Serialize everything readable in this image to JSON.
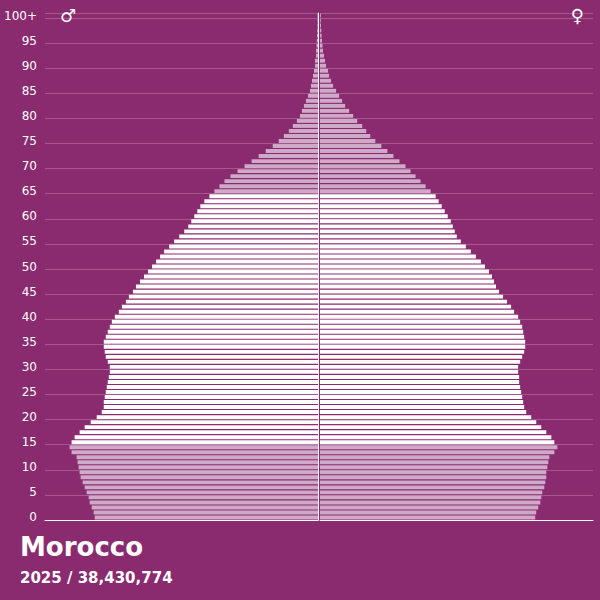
{
  "chart_data": {
    "type": "pyramid",
    "title": "Morocco",
    "subtitle": "2025 / 38,430,774",
    "categories": [
      "0",
      null,
      null,
      null,
      null,
      "5",
      null,
      null,
      null,
      null,
      "10",
      null,
      null,
      null,
      null,
      "15",
      null,
      null,
      null,
      null,
      "20",
      null,
      null,
      null,
      null,
      "25",
      null,
      null,
      null,
      null,
      "30",
      null,
      null,
      null,
      null,
      "35",
      null,
      null,
      null,
      null,
      "40",
      null,
      null,
      null,
      null,
      "45",
      null,
      null,
      null,
      null,
      "50",
      null,
      null,
      null,
      null,
      "55",
      null,
      null,
      null,
      null,
      "60",
      null,
      null,
      null,
      null,
      "65",
      null,
      null,
      null,
      null,
      "70",
      null,
      null,
      null,
      null,
      "75",
      null,
      null,
      null,
      null,
      "80",
      null,
      null,
      null,
      null,
      "85",
      null,
      null,
      null,
      null,
      "90",
      null,
      null,
      null,
      null,
      "95",
      null,
      null,
      null,
      null,
      "100+"
    ],
    "series": [
      {
        "name": "♂",
        "values": [
          310800,
          312200,
          315000,
          317800,
          319200,
          322000,
          324800,
          327600,
          330400,
          331800,
          333200,
          334600,
          336000,
          343000,
          345800,
          343000,
          338800,
          331800,
          324800,
          316400,
          308000,
          301000,
          298200,
          298200,
          296800,
          295400,
          294000,
          292600,
          291200,
          289800,
          289800,
          292600,
          295400,
          296800,
          298200,
          298200,
          295400,
          292600,
          289800,
          287000,
          282800,
          277200,
          273000,
          267400,
          263200,
          257600,
          253400,
          247800,
          242200,
          236600,
          231000,
          225400,
          219800,
          214200,
          207200,
          200200,
          193200,
          186200,
          180600,
          176400,
          172200,
          168000,
          163800,
          158200,
          151200,
          144200,
          137200,
          130200,
          121800,
          112000,
          102200,
          92400,
          82600,
          72800,
          63000,
          54600,
          47600,
          40600,
          35000,
          29400,
          25200,
          22400,
          19600,
          16800,
          14000,
          11200,
          9800,
          8400,
          7000,
          5600,
          4200,
          4200,
          2800,
          2800,
          2100,
          1700,
          1400,
          1100,
          800,
          700,
          700
        ],
        "colors": [
          "#cfa9c8",
          "#cfa9c8",
          "#cfa9c8",
          "#cfa9c8",
          "#cfa9c8",
          "#cfa9c8",
          "#cfa9c8",
          "#cfa9c8",
          "#cfa9c8",
          "#cfa9c8",
          "#cfa9c8",
          "#cfa9c8",
          "#cfa9c8",
          "#cfa9c8",
          "#cfa9c8",
          "#ffffff",
          "#ffffff",
          "#ffffff",
          "#ffffff",
          "#ffffff",
          "#ffffff",
          "#ffffff",
          "#ffffff",
          "#ffffff",
          "#ffffff",
          "#ffffff",
          "#ffffff",
          "#ffffff",
          "#ffffff",
          "#ffffff",
          "#ffffff",
          "#ffffff",
          "#ffffff",
          "#ffffff",
          "#ffffff",
          "#ffffff",
          "#ffffff",
          "#ffffff",
          "#ffffff",
          "#ffffff",
          "#ffffff",
          "#ffffff",
          "#ffffff",
          "#ffffff",
          "#ffffff",
          "#ffffff",
          "#ffffff",
          "#ffffff",
          "#ffffff",
          "#ffffff",
          "#ffffff",
          "#ffffff",
          "#ffffff",
          "#ffffff",
          "#ffffff",
          "#ffffff",
          "#ffffff",
          "#ffffff",
          "#ffffff",
          "#ffffff",
          "#ffffff",
          "#ffffff",
          "#ffffff",
          "#ffffff",
          "#ffffff",
          "#cfa9c8",
          "#cfa9c8",
          "#cfa9c8",
          "#cfa9c8",
          "#cfa9c8",
          "#cfa9c8",
          "#cfa9c8",
          "#cfa9c8",
          "#cfa9c8",
          "#cfa9c8",
          "#cfa9c8",
          "#cfa9c8",
          "#cfa9c8",
          "#cfa9c8",
          "#cfa9c8",
          "#cfa9c8",
          "#cfa9c8",
          "#cfa9c8",
          "#cfa9c8",
          "#cfa9c8",
          "#cfa9c8",
          "#cfa9c8",
          "#cfa9c8",
          "#cfa9c8",
          "#cfa9c8",
          "#cfa9c8",
          "#cfa9c8",
          "#cfa9c8",
          "#cfa9c8",
          "#cfa9c8",
          "#cfa9c8",
          "#cfa9c8",
          "#cfa9c8",
          "#cfa9c8",
          "#cfa9c8",
          "#cfa9c8"
        ]
      },
      {
        "name": "♀",
        "values": [
          299600,
          301000,
          303800,
          306600,
          308000,
          309400,
          312200,
          313600,
          315000,
          315000,
          316400,
          317800,
          319200,
          326200,
          330400,
          326200,
          322000,
          315000,
          308000,
          301000,
          294000,
          287000,
          284200,
          282800,
          281400,
          280000,
          278600,
          277200,
          277200,
          275800,
          275800,
          278600,
          281400,
          284200,
          285600,
          285600,
          284200,
          282800,
          281400,
          278600,
          275800,
          270200,
          266000,
          260400,
          254800,
          249200,
          245000,
          242200,
          239400,
          235200,
          229600,
          224000,
          217000,
          210000,
          203000,
          196000,
          190400,
          187600,
          184800,
          182000,
          177800,
          173600,
          169400,
          165200,
          161000,
          154000,
          147000,
          140000,
          133000,
          126000,
          119000,
          110600,
          102200,
          93800,
          85400,
          77000,
          70000,
          64400,
          58800,
          51800,
          46200,
          40600,
          35000,
          30800,
          26600,
          22400,
          18200,
          15400,
          12600,
          11200,
          8400,
          7000,
          5600,
          4200,
          3500,
          2800,
          2200,
          1800,
          1400,
          1100,
          1100
        ],
        "colors": [
          "#cfa9c8",
          "#cfa9c8",
          "#cfa9c8",
          "#cfa9c8",
          "#cfa9c8",
          "#cfa9c8",
          "#cfa9c8",
          "#cfa9c8",
          "#cfa9c8",
          "#cfa9c8",
          "#cfa9c8",
          "#cfa9c8",
          "#cfa9c8",
          "#cfa9c8",
          "#cfa9c8",
          "#ffffff",
          "#ffffff",
          "#ffffff",
          "#ffffff",
          "#ffffff",
          "#ffffff",
          "#ffffff",
          "#ffffff",
          "#ffffff",
          "#ffffff",
          "#ffffff",
          "#ffffff",
          "#ffffff",
          "#ffffff",
          "#ffffff",
          "#ffffff",
          "#ffffff",
          "#ffffff",
          "#ffffff",
          "#ffffff",
          "#ffffff",
          "#ffffff",
          "#ffffff",
          "#ffffff",
          "#ffffff",
          "#ffffff",
          "#ffffff",
          "#ffffff",
          "#ffffff",
          "#ffffff",
          "#ffffff",
          "#ffffff",
          "#ffffff",
          "#ffffff",
          "#ffffff",
          "#ffffff",
          "#ffffff",
          "#ffffff",
          "#ffffff",
          "#ffffff",
          "#ffffff",
          "#ffffff",
          "#ffffff",
          "#ffffff",
          "#ffffff",
          "#ffffff",
          "#ffffff",
          "#ffffff",
          "#ffffff",
          "#ffffff",
          "#cfa9c8",
          "#cfa9c8",
          "#cfa9c8",
          "#cfa9c8",
          "#cfa9c8",
          "#cfa9c8",
          "#cfa9c8",
          "#cfa9c8",
          "#cfa9c8",
          "#cfa9c8",
          "#cfa9c8",
          "#cfa9c8",
          "#cfa9c8",
          "#cfa9c8",
          "#cfa9c8",
          "#cfa9c8",
          "#cfa9c8",
          "#cfa9c8",
          "#cfa9c8",
          "#cfa9c8",
          "#cfa9c8",
          "#cfa9c8",
          "#cfa9c8",
          "#cfa9c8",
          "#cfa9c8",
          "#cfa9c8",
          "#cfa9c8",
          "#cfa9c8",
          "#cfa9c8",
          "#cfa9c8",
          "#cfa9c8",
          "#cfa9c8",
          "#cfa9c8",
          "#cfa9c8",
          "#cfa9c8",
          "#cfa9c8"
        ]
      }
    ],
    "xlim": [
      0,
      380000
    ],
    "orientation": "horizontal",
    "grid": true,
    "tick_labels": "y"
  }
}
